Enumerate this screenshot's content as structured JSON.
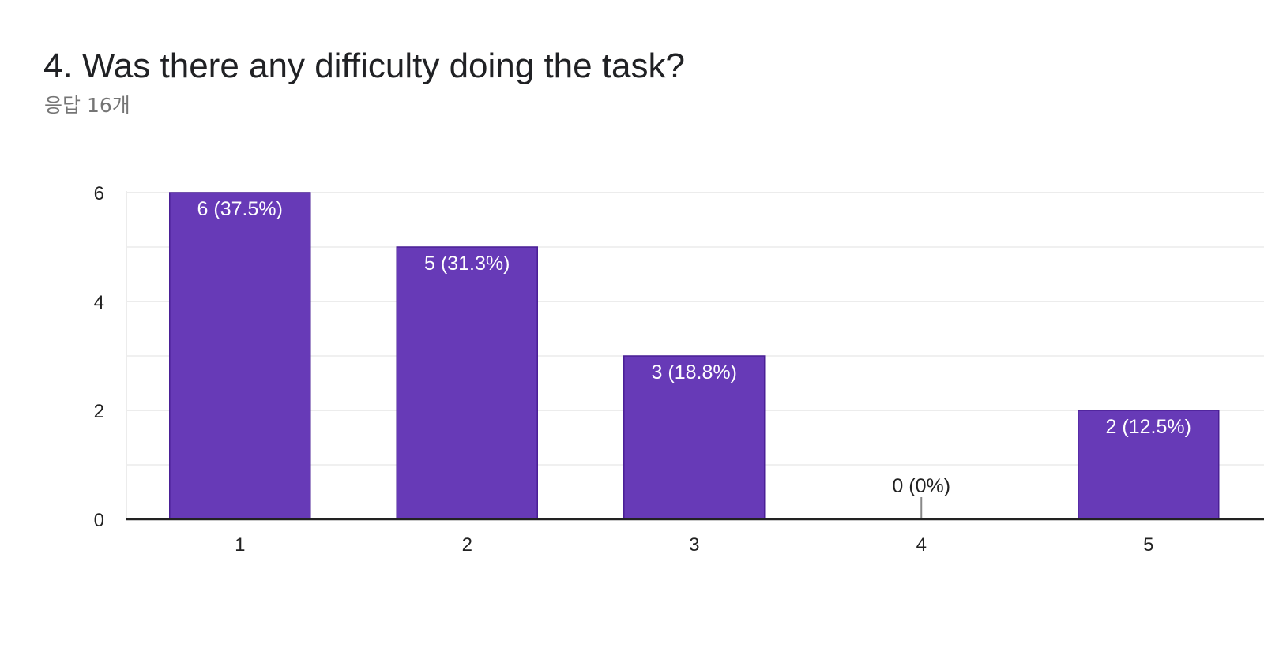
{
  "header": {
    "title": "4. Was there any difficulty doing the task?",
    "subtitle": "응답 16개"
  },
  "colors": {
    "bar": "#673ab7",
    "bar_edge": "#4a1f96",
    "grid": "#ececec",
    "axis": "#222222",
    "zero_stub": "#888888"
  },
  "chart_data": {
    "type": "bar",
    "categories": [
      "1",
      "2",
      "3",
      "4",
      "5"
    ],
    "values": [
      6,
      5,
      3,
      0,
      2
    ],
    "value_labels": [
      "6 (37.5%)",
      "5 (31.3%)",
      "3 (18.8%)",
      "0 (0%)",
      "2 (12.5%)"
    ],
    "ylim": [
      0,
      6
    ],
    "yticks": [
      "0",
      "2",
      "4",
      "6"
    ],
    "minor_gridlines": [
      1,
      3,
      5
    ],
    "grid": true,
    "legend": "none",
    "title": "",
    "xlabel": "",
    "ylabel": ""
  }
}
